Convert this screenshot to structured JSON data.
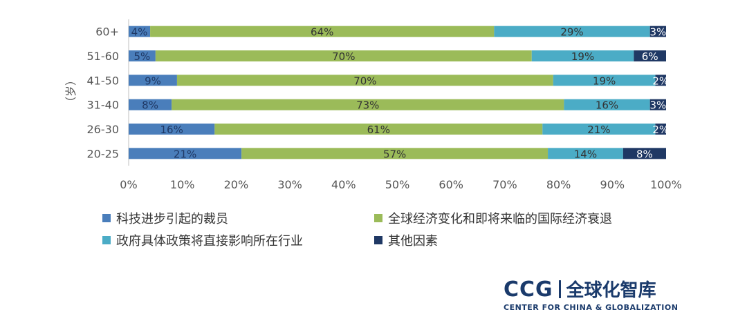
{
  "chart_data": {
    "type": "bar",
    "orientation": "horizontal",
    "stacked": true,
    "ylabel": "（岁）",
    "categories": [
      "60+",
      "51-60",
      "41-50",
      "31-40",
      "26-30",
      "20-25"
    ],
    "series": [
      {
        "name": "科技进步引起的裁员",
        "color": "#4a7ebb",
        "values": [
          4,
          5,
          9,
          8,
          16,
          21
        ],
        "labels": [
          "4%",
          "5%",
          "9%",
          "8%",
          "16%",
          "21%"
        ]
      },
      {
        "name": "全球经济变化和即将来临的国际经济衰退",
        "color": "#9bbb59",
        "values": [
          64,
          70,
          70,
          73,
          61,
          57
        ],
        "labels": [
          "64%",
          "70%",
          "70%",
          "73%",
          "61%",
          "57%"
        ]
      },
      {
        "name": "政府具体政策将直接影响所在行业",
        "color": "#4bacc6",
        "values": [
          29,
          19,
          19,
          16,
          21,
          14
        ],
        "labels": [
          "29%",
          "19%",
          "19%",
          "16%",
          "21%",
          "14%"
        ]
      },
      {
        "name": "其他因素",
        "color": "#1f3864",
        "values": [
          3,
          6,
          2,
          3,
          2,
          8
        ],
        "labels": [
          "3%",
          "6%",
          "2%",
          "3%",
          "2%",
          "8%"
        ]
      }
    ],
    "xlim": [
      0,
      100
    ],
    "xticks": [
      "0%",
      "10%",
      "20%",
      "30%",
      "40%",
      "50%",
      "60%",
      "70%",
      "80%",
      "90%",
      "100%"
    ],
    "legend_position": "bottom"
  },
  "logo": {
    "abbr": "CCG",
    "chinese": "全球化智库",
    "english": "CENTER FOR CHINA & GLOBALIZATION"
  }
}
